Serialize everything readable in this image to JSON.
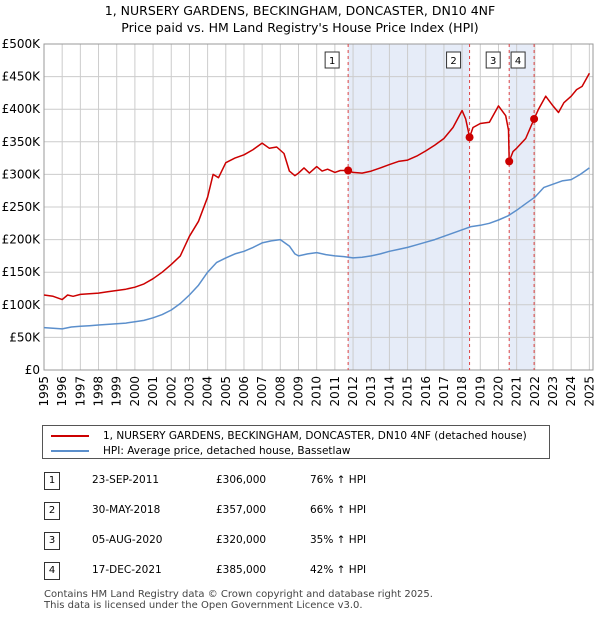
{
  "title_line1": "1, NURSERY GARDENS, BECKINGHAM, DONCASTER, DN10 4NF",
  "title_line2": "Price paid vs. HM Land Registry's House Price Index (HPI)",
  "colors": {
    "property": "#cc0000",
    "hpi": "#5b8fcc",
    "shade": "#e6ecf8",
    "marker_line": "#dd4444",
    "grid": "#cccccc"
  },
  "legend": {
    "property_label": "1, NURSERY GARDENS, BECKINGHAM, DONCASTER, DN10 4NF (detached house)",
    "hpi_label": "HPI: Average price, detached house, Bassetlaw"
  },
  "sales": [
    {
      "num": "1",
      "date": "23-SEP-2011",
      "price": "£306,000",
      "hpi": "76% ↑ HPI"
    },
    {
      "num": "2",
      "date": "30-MAY-2018",
      "price": "£357,000",
      "hpi": "66% ↑ HPI"
    },
    {
      "num": "3",
      "date": "05-AUG-2020",
      "price": "£320,000",
      "hpi": "35% ↑ HPI"
    },
    {
      "num": "4",
      "date": "17-DEC-2021",
      "price": "£385,000",
      "hpi": "42% ↑ HPI"
    }
  ],
  "footer_line1": "Contains HM Land Registry data © Crown copyright and database right 2025.",
  "footer_line2": "This data is licensed under the Open Government Licence v3.0.",
  "chart_data": {
    "type": "line",
    "title": "1, NURSERY GARDENS, BECKINGHAM, DONCASTER, DN10 4NF",
    "subtitle": "Price paid vs. HM Land Registry's House Price Index (HPI)",
    "xlim": [
      1995,
      2025.2
    ],
    "ylim": [
      0,
      500000
    ],
    "x_ticks": [
      1995,
      1996,
      1997,
      1998,
      1999,
      2000,
      2001,
      2002,
      2003,
      2004,
      2005,
      2006,
      2007,
      2008,
      2009,
      2010,
      2011,
      2012,
      2013,
      2014,
      2015,
      2016,
      2017,
      2018,
      2019,
      2020,
      2021,
      2022,
      2023,
      2024,
      2025
    ],
    "x_tick_labels": [
      "1995",
      "1996",
      "1997",
      "1998",
      "1999",
      "2000",
      "2001",
      "2002",
      "2003",
      "2004",
      "2005",
      "2006",
      "2007",
      "2008",
      "2009",
      "2010",
      "2011",
      "2012",
      "2013",
      "2014",
      "2015",
      "2016",
      "2017",
      "2018",
      "2019",
      "2020",
      "2021",
      "2022",
      "2023",
      "2024",
      "2025"
    ],
    "y_ticks": [
      0,
      50000,
      100000,
      150000,
      200000,
      250000,
      300000,
      350000,
      400000,
      450000,
      500000
    ],
    "y_tick_labels": [
      "£0",
      "£50K",
      "£100K",
      "£150K",
      "£200K",
      "£250K",
      "£300K",
      "£350K",
      "£400K",
      "£450K",
      "£500K"
    ],
    "grid": true,
    "shaded_ranges": [
      [
        2011.73,
        2018.41
      ],
      [
        2020.59,
        2021.96
      ]
    ],
    "series": [
      {
        "name": "1, NURSERY GARDENS, BECKINGHAM, DONCASTER, DN10 4NF (detached house)",
        "color": "#cc0000",
        "x": [
          1995,
          1995.5,
          1996,
          1996.3,
          1996.6,
          1997,
          1997.5,
          1998,
          1998.5,
          1999,
          1999.5,
          2000,
          2000.5,
          2001,
          2001.5,
          2002,
          2002.5,
          2003,
          2003.5,
          2004,
          2004.3,
          2004.6,
          2005,
          2005.5,
          2006,
          2006.5,
          2007,
          2007.4,
          2007.8,
          2008.2,
          2008.5,
          2008.8,
          2009,
          2009.3,
          2009.6,
          2010,
          2010.3,
          2010.6,
          2011,
          2011.3,
          2011.73,
          2012,
          2012.5,
          2013,
          2013.5,
          2014,
          2014.5,
          2015,
          2015.5,
          2016,
          2016.5,
          2017,
          2017.5,
          2018,
          2018.2,
          2018.41,
          2018.6,
          2019,
          2019.5,
          2020,
          2020.4,
          2020.55,
          2020.59,
          2020.8,
          2021,
          2021.5,
          2021.96,
          2022.2,
          2022.6,
          2023,
          2023.3,
          2023.6,
          2024,
          2024.3,
          2024.6,
          2025
        ],
        "y": [
          115000,
          113000,
          108000,
          115000,
          113000,
          116000,
          117000,
          118000,
          120000,
          122000,
          124000,
          127000,
          132000,
          140000,
          150000,
          162000,
          175000,
          205000,
          228000,
          265000,
          300000,
          295000,
          318000,
          325000,
          330000,
          338000,
          348000,
          340000,
          342000,
          332000,
          305000,
          298000,
          302000,
          310000,
          302000,
          312000,
          305000,
          308000,
          303000,
          306000,
          306000,
          303000,
          302000,
          305000,
          310000,
          315000,
          320000,
          322000,
          328000,
          336000,
          345000,
          355000,
          372000,
          398000,
          385000,
          357000,
          372000,
          378000,
          380000,
          405000,
          390000,
          368000,
          320000,
          335000,
          340000,
          355000,
          385000,
          400000,
          420000,
          405000,
          395000,
          410000,
          420000,
          430000,
          435000,
          455000
        ]
      },
      {
        "name": "HPI: Average price, detached house, Bassetlaw",
        "color": "#5b8fcc",
        "x": [
          1995,
          1995.5,
          1996,
          1996.5,
          1997,
          1997.5,
          1998,
          1998.5,
          1999,
          1999.5,
          2000,
          2000.5,
          2001,
          2001.5,
          2002,
          2002.5,
          2003,
          2003.5,
          2004,
          2004.5,
          2005,
          2005.5,
          2006,
          2006.5,
          2007,
          2007.5,
          2008,
          2008.5,
          2008.8,
          2009,
          2009.5,
          2010,
          2010.5,
          2011,
          2011.5,
          2012,
          2012.5,
          2013,
          2013.5,
          2014,
          2014.5,
          2015,
          2015.5,
          2016,
          2016.5,
          2017,
          2017.5,
          2018,
          2018.5,
          2019,
          2019.5,
          2020,
          2020.5,
          2021,
          2021.5,
          2022,
          2022.5,
          2023,
          2023.5,
          2024,
          2024.5,
          2025
        ],
        "y": [
          65000,
          64000,
          63000,
          66000,
          67000,
          68000,
          69000,
          70000,
          71000,
          72000,
          74000,
          76000,
          80000,
          85000,
          92000,
          102000,
          115000,
          130000,
          150000,
          165000,
          172000,
          178000,
          182000,
          188000,
          195000,
          198000,
          200000,
          190000,
          178000,
          175000,
          178000,
          180000,
          177000,
          175000,
          174000,
          172000,
          173000,
          175000,
          178000,
          182000,
          185000,
          188000,
          192000,
          196000,
          200000,
          205000,
          210000,
          215000,
          220000,
          222000,
          225000,
          230000,
          236000,
          245000,
          255000,
          265000,
          280000,
          285000,
          290000,
          292000,
          300000,
          310000
        ]
      }
    ],
    "sale_points": [
      {
        "label": "1",
        "x": 2011.73,
        "y": 306000
      },
      {
        "label": "2",
        "x": 2018.41,
        "y": 357000
      },
      {
        "label": "3",
        "x": 2020.59,
        "y": 320000
      },
      {
        "label": "4",
        "x": 2021.96,
        "y": 385000
      }
    ]
  }
}
